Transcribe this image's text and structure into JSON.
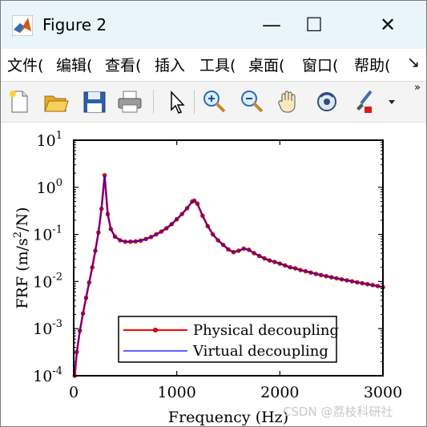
{
  "window": {
    "title": "Figure 2",
    "minimize_symbol": "—",
    "maximize_symbol": "☐",
    "close_symbol": "✕"
  },
  "menu": {
    "items": [
      "文件(",
      "编辑(",
      "查看(",
      "插入",
      "工具(",
      "桌面(",
      "窗口(",
      "帮助("
    ],
    "overflow_symbol": "↘"
  },
  "toolbar": {
    "icons": [
      "new-figure-icon",
      "open-file-icon",
      "save-icon",
      "print-icon",
      "edit-plot-arrow-icon",
      "zoom-in-icon",
      "zoom-out-icon",
      "pan-hand-icon",
      "rotate-3d-icon",
      "brush-icon",
      "brush-dropdown-icon"
    ],
    "overflow_symbol": "»"
  },
  "chart_data": {
    "type": "line",
    "xlabel": "Frequency (Hz)",
    "ylabel_parts": [
      "FRF (m/s",
      "2",
      "/N)"
    ],
    "xlim": [
      0,
      3000
    ],
    "ylim": [
      0.0001,
      10
    ],
    "yscale": "log",
    "xticks": [
      0,
      1000,
      2000,
      3000
    ],
    "xtick_labels": [
      "0",
      "1000",
      "2000",
      "3000"
    ],
    "yticks": [
      {
        "value": 10,
        "base": "10",
        "exp": "1"
      },
      {
        "value": 1,
        "base": "10",
        "exp": "0"
      },
      {
        "value": 0.1,
        "base": "10",
        "exp": "-1"
      },
      {
        "value": 0.01,
        "base": "10",
        "exp": "-2"
      },
      {
        "value": 0.001,
        "base": "10",
        "exp": "-3"
      },
      {
        "value": 0.0001,
        "base": "10",
        "exp": "-4"
      }
    ],
    "grid": false,
    "legend_position": "bottom-center",
    "series": [
      {
        "name": "Physical decoupling",
        "color": "#ff0000",
        "marker": "circle",
        "x": [
          10,
          30,
          60,
          90,
          120,
          150,
          180,
          210,
          240,
          270,
          300,
          330,
          360,
          400,
          450,
          500,
          550,
          600,
          650,
          700,
          750,
          800,
          850,
          900,
          950,
          1000,
          1050,
          1100,
          1150,
          1170,
          1200,
          1250,
          1300,
          1350,
          1400,
          1450,
          1500,
          1550,
          1600,
          1650,
          1700,
          1750,
          1800,
          1850,
          1900,
          1950,
          2000,
          2050,
          2100,
          2150,
          2200,
          2250,
          2300,
          2350,
          2400,
          2450,
          2500,
          2550,
          2600,
          2650,
          2700,
          2750,
          2800,
          2850,
          2900,
          2950,
          3000
        ],
        "y": [
          0.0001,
          0.00032,
          0.0009,
          0.0021,
          0.0045,
          0.0095,
          0.02,
          0.045,
          0.11,
          0.35,
          1.8,
          0.27,
          0.13,
          0.09,
          0.075,
          0.07,
          0.07,
          0.071,
          0.074,
          0.08,
          0.088,
          0.1,
          0.115,
          0.135,
          0.165,
          0.21,
          0.27,
          0.36,
          0.5,
          0.52,
          0.45,
          0.25,
          0.15,
          0.1,
          0.075,
          0.06,
          0.048,
          0.042,
          0.045,
          0.05,
          0.047,
          0.04,
          0.035,
          0.031,
          0.028,
          0.026,
          0.024,
          0.022,
          0.02,
          0.019,
          0.0175,
          0.0165,
          0.0155,
          0.0145,
          0.0137,
          0.013,
          0.0123,
          0.0117,
          0.0111,
          0.0106,
          0.0101,
          0.0096,
          0.0092,
          0.0088,
          0.0084,
          0.008,
          0.0076
        ]
      },
      {
        "name": "Virtual decoupling",
        "color": "#0000ff",
        "x": [
          5,
          30,
          60,
          90,
          120,
          150,
          180,
          210,
          240,
          270,
          300,
          330,
          360,
          400,
          450,
          500,
          550,
          600,
          650,
          700,
          750,
          800,
          850,
          900,
          950,
          1000,
          1050,
          1100,
          1150,
          1170,
          1200,
          1250,
          1300,
          1350,
          1400,
          1450,
          1500,
          1550,
          1600,
          1650,
          1700,
          1750,
          1800,
          1850,
          1900,
          1950,
          2000,
          2050,
          2100,
          2150,
          2200,
          2250,
          2300,
          2350,
          2400,
          2450,
          2500,
          2550,
          2600,
          2650,
          2700,
          2750,
          2800,
          2850,
          2900,
          2950,
          3000
        ],
        "y": [
          0.0001,
          0.00032,
          0.0009,
          0.0021,
          0.0045,
          0.0095,
          0.02,
          0.045,
          0.11,
          0.35,
          1.8,
          0.27,
          0.13,
          0.09,
          0.075,
          0.07,
          0.07,
          0.071,
          0.074,
          0.08,
          0.088,
          0.1,
          0.115,
          0.135,
          0.165,
          0.21,
          0.27,
          0.36,
          0.5,
          0.52,
          0.45,
          0.25,
          0.15,
          0.1,
          0.075,
          0.06,
          0.048,
          0.042,
          0.045,
          0.05,
          0.047,
          0.04,
          0.035,
          0.031,
          0.028,
          0.026,
          0.024,
          0.022,
          0.02,
          0.019,
          0.0175,
          0.0165,
          0.0155,
          0.0145,
          0.0137,
          0.013,
          0.0123,
          0.0117,
          0.0111,
          0.0106,
          0.0101,
          0.0096,
          0.0092,
          0.0088,
          0.0084,
          0.008,
          0.0076
        ]
      }
    ]
  },
  "watermark": "CSDN @荔枝科研社"
}
